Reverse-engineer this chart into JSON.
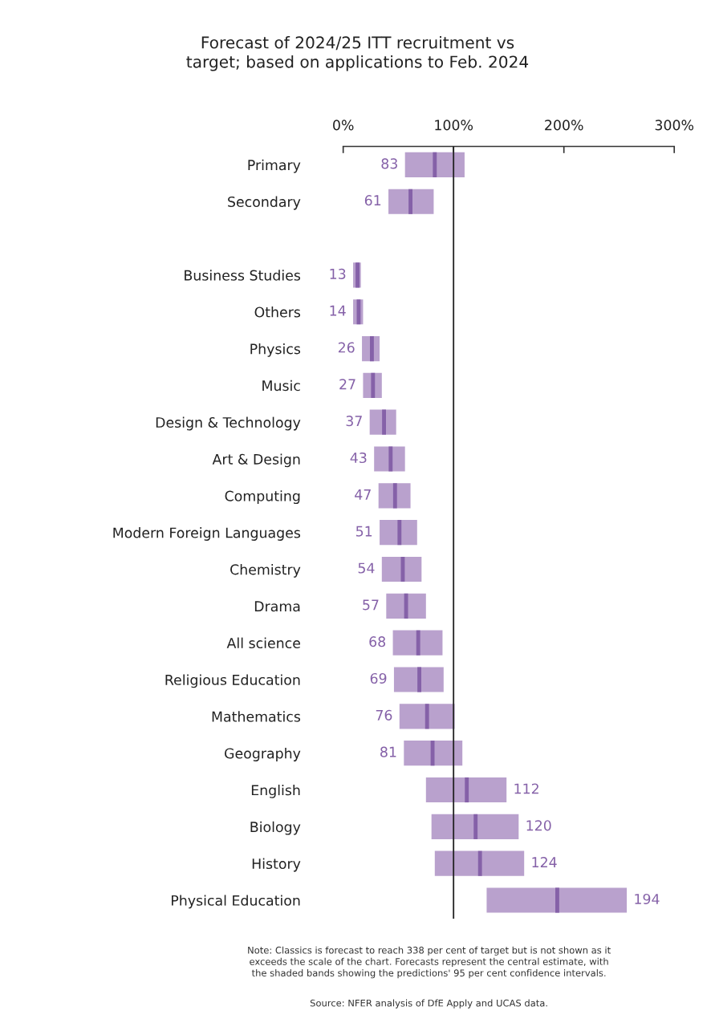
{
  "chart_data": {
    "type": "box",
    "orientation": "horizontal",
    "title": "Forecast of 2024/25 ITT recruitment vs\ntarget; based on applications to Feb. 2024",
    "categories": [
      "Primary",
      "Secondary",
      null,
      "Business Studies",
      "Others",
      "Physics",
      "Music",
      "Design & Technology",
      "Art & Design",
      "Computing",
      "Modern Foreign Languages",
      "Chemistry",
      "Drama",
      "All science",
      "Religious Education",
      "Mathematics",
      "Geography",
      "English",
      "Biology",
      "History",
      "Physical Education"
    ],
    "series": [
      {
        "color": "#b9a1cd",
        "boxes": [
          {
            "low": 56,
            "q1": 56,
            "median": 83,
            "q3": 110,
            "high": 110
          },
          {
            "low": 41,
            "q1": 41,
            "median": 61,
            "q3": 82,
            "high": 82
          },
          null,
          {
            "low": 9,
            "q1": 9,
            "median": 13,
            "q3": 16,
            "high": 16
          },
          {
            "low": 9,
            "q1": 9,
            "median": 14,
            "q3": 18,
            "high": 18
          },
          {
            "low": 17,
            "q1": 17,
            "median": 26,
            "q3": 33,
            "high": 33
          },
          {
            "low": 18,
            "q1": 18,
            "median": 27,
            "q3": 35,
            "high": 35
          },
          {
            "low": 24,
            "q1": 24,
            "median": 37,
            "q3": 48,
            "high": 48
          },
          {
            "low": 28,
            "q1": 28,
            "median": 43,
            "q3": 56,
            "high": 56
          },
          {
            "low": 32,
            "q1": 32,
            "median": 47,
            "q3": 61,
            "high": 61
          },
          {
            "low": 33,
            "q1": 33,
            "median": 51,
            "q3": 67,
            "high": 67
          },
          {
            "low": 35,
            "q1": 35,
            "median": 54,
            "q3": 71,
            "high": 71
          },
          {
            "low": 39,
            "q1": 39,
            "median": 57,
            "q3": 75,
            "high": 75
          },
          {
            "low": 45,
            "q1": 45,
            "median": 68,
            "q3": 90,
            "high": 90
          },
          {
            "low": 46,
            "q1": 46,
            "median": 69,
            "q3": 91,
            "high": 91
          },
          {
            "low": 51,
            "q1": 51,
            "median": 76,
            "q3": 101,
            "high": 101
          },
          {
            "low": 55,
            "q1": 55,
            "median": 81,
            "q3": 108,
            "high": 108
          },
          {
            "low": 75,
            "q1": 75,
            "median": 112,
            "q3": 148,
            "high": 148
          },
          {
            "low": 80,
            "q1": 80,
            "median": 120,
            "q3": 159,
            "high": 159
          },
          {
            "low": 83,
            "q1": 83,
            "median": 124,
            "q3": 164,
            "high": 164
          },
          {
            "low": 130,
            "q1": 130,
            "median": 194,
            "q3": 257,
            "high": 257
          }
        ],
        "value_labels": [
          "83",
          "61",
          null,
          "13",
          "14",
          "26",
          "27",
          "37",
          "43",
          "47",
          "51",
          "54",
          "57",
          "68",
          "69",
          "76",
          "81",
          "112",
          "120",
          "124",
          "194"
        ]
      }
    ],
    "xlim": [
      0,
      300
    ],
    "xticks": [
      {
        "value": 0,
        "label": "0%"
      },
      {
        "value": 100,
        "label": "100%"
      },
      {
        "value": 200,
        "label": "200%"
      },
      {
        "value": 300,
        "label": "300%"
      }
    ],
    "ref_lines": [
      {
        "axis": "x",
        "value": 100,
        "color": "#222222"
      }
    ],
    "annotations": [
      "Note: Classics is forecast to reach 338 per cent of target but is not shown as it\nexceeds the scale of the chart. Forecasts represent the central estimate, with\nthe shaded bands showing the predictions' 95 per cent confidence intervals.",
      "Source: NFER analysis of DfE Apply and UCAS data."
    ]
  }
}
